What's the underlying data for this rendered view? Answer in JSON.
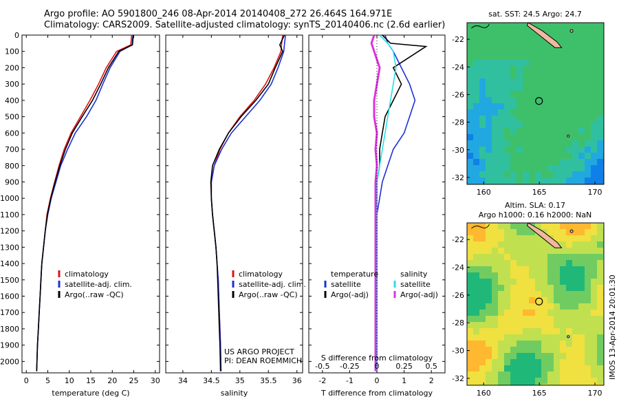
{
  "header": {
    "line1": "Argo profile: AO 5901800_246 08-Apr-2014 20140408_272 26.464S 164.971E",
    "line2": "Climatology: CARS2009. Satellite-adjusted climatology: synTS_20140406.nc (2.6d earlier)"
  },
  "side_stamp": "IMOS 13-Apr-2014 20:01:30",
  "colors": {
    "clim": "#e01010",
    "sat": "#1c2fd6",
    "argo": "#000000",
    "sat_s": "#22e0e8",
    "argo_s": "#e030e0"
  },
  "chart_data": [
    {
      "type": "line",
      "xlabel": "temperature (deg C)",
      "xlim": [
        -1,
        31
      ],
      "xticks": [
        0,
        5,
        10,
        15,
        20,
        25,
        30
      ],
      "ylim": [
        0,
        2070
      ],
      "yticks": [
        0,
        100,
        200,
        300,
        400,
        500,
        600,
        700,
        800,
        900,
        1000,
        1100,
        1200,
        1300,
        1400,
        1500,
        1600,
        1700,
        1800,
        1900,
        2000
      ],
      "legend": {
        "position": "lower-left",
        "entries": [
          "climatology",
          "satellite-adj. clim.",
          "Argo(..raw -QC)"
        ]
      },
      "series": [
        {
          "name": "climatology",
          "color": "clim",
          "x": [
            24.5,
            24.3,
            21.0,
            18.6,
            16.8,
            14.8,
            12.6,
            10.4,
            8.8,
            7.6,
            6.6,
            5.6,
            4.8,
            4.4,
            4.0,
            3.6,
            3.4,
            3.2,
            3.0,
            2.8,
            2.6,
            2.4
          ],
          "y": [
            0,
            60,
            100,
            200,
            300,
            400,
            500,
            600,
            700,
            800,
            900,
            1000,
            1100,
            1200,
            1300,
            1400,
            1500,
            1600,
            1700,
            1800,
            1900,
            2060
          ]
        },
        {
          "name": "satellite-adj. clim.",
          "color": "sat",
          "x": [
            24.8,
            24.6,
            21.8,
            19.5,
            17.8,
            16.2,
            14.0,
            11.4,
            9.6,
            8.0,
            6.9,
            5.8,
            5.0,
            4.4,
            4.0,
            3.6,
            3.4,
            3.2,
            3.0,
            2.8,
            2.6,
            2.4
          ],
          "y": [
            0,
            60,
            100,
            200,
            300,
            400,
            500,
            600,
            700,
            800,
            900,
            1000,
            1100,
            1200,
            1300,
            1400,
            1500,
            1600,
            1700,
            1800,
            1900,
            2060
          ]
        },
        {
          "name": "Argo(..raw -QC)",
          "color": "argo",
          "x": [
            24.9,
            24.7,
            21.5,
            19.1,
            17.3,
            15.4,
            13.0,
            10.7,
            9.1,
            7.8,
            6.7,
            5.7,
            4.9,
            4.4,
            4.0,
            3.6,
            3.4,
            3.2,
            3.0,
            2.8,
            2.6,
            2.4
          ],
          "y": [
            0,
            60,
            100,
            200,
            300,
            400,
            500,
            600,
            700,
            800,
            900,
            1000,
            1100,
            1200,
            1300,
            1400,
            1500,
            1600,
            1700,
            1800,
            1900,
            2060
          ]
        }
      ]
    },
    {
      "type": "line",
      "xlabel": "salinity",
      "xlim": [
        33.7,
        36.1
      ],
      "xticks": [
        34,
        34.5,
        35,
        35.5,
        36
      ],
      "ylim": [
        0,
        2070
      ],
      "legend": {
        "position": "lower-left",
        "entries": [
          "climatology",
          "satellite-adj. clim.",
          "Argo(..raw -QC)"
        ]
      },
      "annotation": [
        "US ARGO PROJECT",
        "PI: DEAN ROEMMICH"
      ],
      "series": [
        {
          "name": "climatology",
          "color": "clim",
          "x": [
            35.75,
            35.73,
            35.72,
            35.6,
            35.45,
            35.25,
            35.0,
            34.8,
            34.65,
            34.55,
            34.5,
            34.5,
            34.52,
            34.55,
            34.58,
            34.6,
            34.62,
            34.63,
            34.64,
            34.65,
            34.66,
            34.67
          ],
          "y": [
            0,
            60,
            100,
            200,
            300,
            400,
            500,
            600,
            700,
            800,
            900,
            1000,
            1100,
            1200,
            1300,
            1400,
            1500,
            1600,
            1700,
            1800,
            1900,
            2060
          ]
        },
        {
          "name": "satellite-adj. clim.",
          "color": "sat",
          "x": [
            35.8,
            35.78,
            35.77,
            35.67,
            35.55,
            35.35,
            35.1,
            34.85,
            34.68,
            34.55,
            34.5,
            34.5,
            34.52,
            34.55,
            34.58,
            34.6,
            34.62,
            34.63,
            34.64,
            34.65,
            34.66,
            34.67
          ],
          "y": [
            0,
            60,
            100,
            200,
            300,
            400,
            500,
            600,
            700,
            800,
            900,
            1000,
            1100,
            1200,
            1300,
            1400,
            1500,
            1600,
            1700,
            1800,
            1900,
            2060
          ]
        },
        {
          "name": "Argo(..raw -QC)",
          "color": "argo",
          "x": [
            35.78,
            35.7,
            35.75,
            35.62,
            35.5,
            35.28,
            35.02,
            34.8,
            34.64,
            34.52,
            34.49,
            34.5,
            34.52,
            34.55,
            34.58,
            34.6,
            34.61,
            34.62,
            34.63,
            34.64,
            34.65,
            34.66
          ],
          "y": [
            0,
            60,
            100,
            200,
            300,
            400,
            500,
            600,
            700,
            800,
            900,
            1000,
            1100,
            1200,
            1300,
            1400,
            1500,
            1600,
            1700,
            1800,
            1900,
            2060
          ]
        }
      ]
    },
    {
      "type": "line",
      "xlabel": "T difference from climatology",
      "xlabel2": "S difference from climatology",
      "xlim": [
        -2.5,
        2.5
      ],
      "xticks": [
        -2,
        -1,
        0,
        1,
        2
      ],
      "xticks_s": [
        "-0.5",
        "-0.25",
        "0",
        "0.25",
        "0.5"
      ],
      "xticks_s_values": [
        -2,
        -1,
        0,
        1,
        2
      ],
      "ylim": [
        0,
        2070
      ],
      "legend": {
        "position": "lower-center",
        "entries": [
          [
            "temperature",
            "salinity"
          ],
          [
            "satellite",
            "satellite"
          ],
          [
            "Argo(-adj)",
            "Argo(-adj)"
          ]
        ]
      },
      "series": [
        {
          "name": "temperature satellite",
          "color": "sat",
          "x": [
            0.3,
            0.4,
            0.6,
            0.9,
            1.2,
            1.4,
            1.2,
            1.0,
            0.6,
            0.4,
            0.2,
            0.1,
            0.0,
            0.0,
            0.0,
            0.0,
            0.0,
            0.0,
            0.0,
            0.0,
            0.0
          ],
          "y": [
            0,
            50,
            100,
            200,
            300,
            400,
            500,
            600,
            700,
            800,
            900,
            1000,
            1100,
            1200,
            1300,
            1400,
            1500,
            1600,
            1700,
            1800,
            2060
          ]
        },
        {
          "name": "temperature Argo(-adj)",
          "color": "argo",
          "x": [
            0.2,
            0.5,
            1.8,
            0.6,
            0.9,
            0.6,
            0.3,
            0.2,
            0.1,
            0.1,
            0.0,
            0.0,
            0.0,
            0.0,
            0.0,
            0.0,
            0.0,
            0.0,
            0.0,
            0.0,
            0.0
          ],
          "y": [
            0,
            50,
            70,
            200,
            300,
            400,
            500,
            600,
            700,
            800,
            900,
            1000,
            1100,
            1200,
            1300,
            1400,
            1500,
            1600,
            1700,
            1800,
            2060
          ]
        },
        {
          "name": "salinity satellite",
          "color": "sat_s",
          "x": [
            0.1,
            0.4,
            0.6,
            0.7,
            0.6,
            0.5,
            0.4,
            0.3,
            0.2,
            0.1,
            0.0,
            0.0,
            0.0,
            0.0,
            0.0,
            0.0,
            0.0,
            0.0,
            0.0,
            0.0,
            0.0
          ],
          "y": [
            0,
            50,
            100,
            200,
            300,
            400,
            500,
            600,
            700,
            800,
            900,
            1000,
            1100,
            1200,
            1300,
            1400,
            1500,
            1600,
            1700,
            1800,
            2060
          ]
        },
        {
          "name": "salinity Argo(-adj)",
          "color": "argo_s",
          "x": [
            -0.1,
            -0.2,
            -0.1,
            0.1,
            0.0,
            -0.1,
            -0.1,
            0.0,
            -0.05,
            0.0,
            -0.05,
            -0.05,
            -0.05,
            -0.05,
            -0.05,
            -0.05,
            -0.05,
            -0.05,
            -0.05,
            -0.05,
            -0.05
          ],
          "y": [
            0,
            50,
            100,
            200,
            300,
            400,
            500,
            600,
            700,
            800,
            900,
            1000,
            1100,
            1200,
            1300,
            1400,
            1500,
            1600,
            1700,
            1800,
            2060
          ]
        }
      ]
    },
    {
      "type": "heatmap",
      "title": "sat. SST: 24.5  Argo: 24.7",
      "xticks": [
        160,
        165,
        170
      ],
      "yticks": [
        -22,
        -24,
        -26,
        -28,
        -30,
        -32
      ],
      "xlim": [
        158.5,
        170.8
      ],
      "ylim": [
        -32.5,
        -20.8
      ],
      "marker": {
        "lon": 164.971,
        "lat": -26.464
      }
    },
    {
      "type": "heatmap",
      "title": "Altim. SLA: 0.17",
      "subtitle": "Argo h1000: 0.16  h2000: NaN",
      "xticks": [
        160,
        165,
        170
      ],
      "yticks": [
        -22,
        -24,
        -26,
        -28,
        -30,
        -32
      ],
      "xlim": [
        158.5,
        170.8
      ],
      "ylim": [
        -32.5,
        -20.8
      ],
      "marker": {
        "lon": 164.971,
        "lat": -26.464
      }
    }
  ]
}
